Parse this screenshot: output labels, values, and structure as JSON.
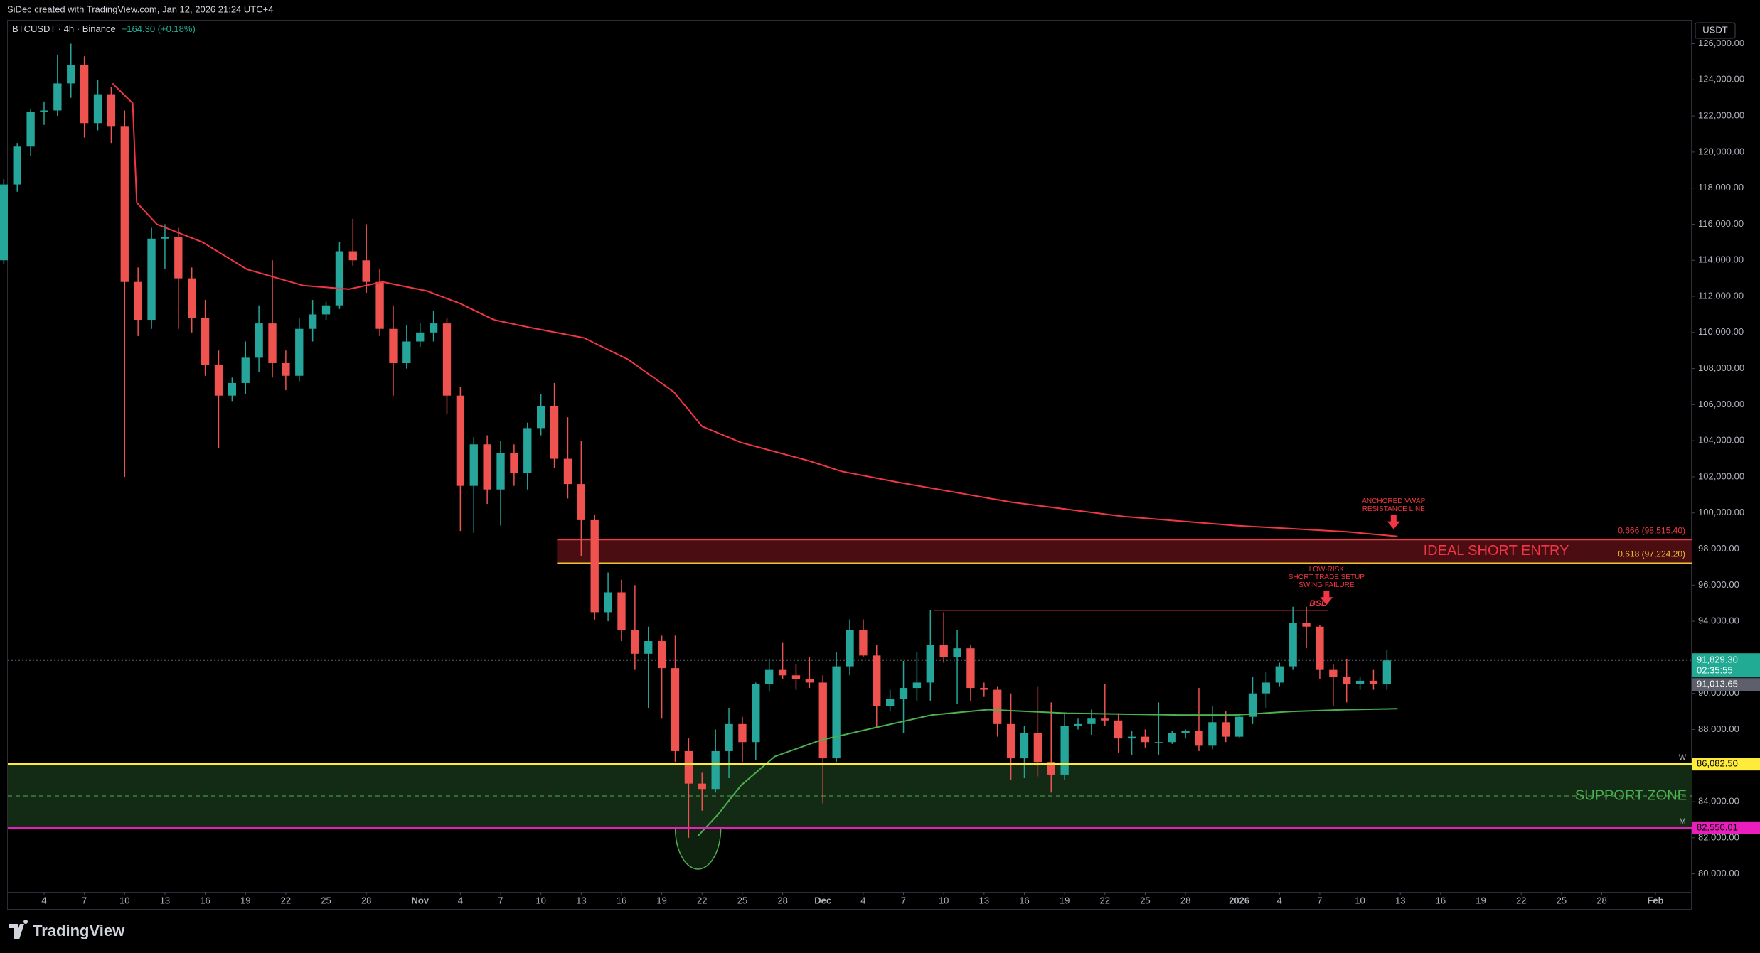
{
  "header": {
    "credit": "SiDec created with TradingView.com, Jan 12, 2026 21:24 UTC+4",
    "currency": "USDT",
    "logo": "TradingView"
  },
  "chart_data": {
    "type": "candlestick",
    "title": "BTCUSDT · 4h · Binance",
    "change": "+164.30 (+0.18%)",
    "up_color": "#26a69a",
    "down_color": "#ef5350",
    "x": [
      0,
      1,
      2,
      3,
      4,
      5,
      6,
      7,
      8,
      9,
      10,
      11,
      12,
      13,
      14,
      15,
      16,
      17,
      18,
      19,
      20,
      21,
      22,
      23,
      24,
      25,
      26,
      27,
      28,
      29,
      30,
      31,
      32,
      33,
      34,
      35,
      36,
      37,
      38,
      39,
      40,
      41,
      42,
      43,
      44,
      45,
      46,
      47,
      48,
      49,
      50,
      51,
      52,
      53,
      54,
      55,
      56,
      57,
      58,
      59,
      60,
      61,
      62,
      63,
      64,
      65,
      66,
      67,
      68,
      69,
      70,
      71,
      72,
      73,
      74,
      75,
      76,
      77,
      78,
      79,
      80,
      81,
      82,
      83,
      84,
      85,
      86,
      87,
      88,
      89,
      90,
      91,
      92,
      93,
      94,
      95,
      96,
      97,
      98,
      99,
      100,
      101,
      102,
      103
    ],
    "open": [
      114000,
      118200,
      120300,
      122200,
      122300,
      123800,
      124800,
      121600,
      123200,
      121400,
      112800,
      110700,
      115200,
      115300,
      113000,
      110800,
      108200,
      106500,
      107200,
      108600,
      110500,
      108300,
      107600,
      110200,
      111000,
      111500,
      114500,
      114000,
      112800,
      110200,
      108300,
      109500,
      110000,
      110500,
      106500,
      101500,
      103800,
      101300,
      103300,
      102200,
      104700,
      105900,
      103000,
      101600,
      99600,
      94500,
      95600,
      93500,
      92200,
      92900,
      91400,
      86800,
      85000,
      84700,
      86800,
      88300,
      87300,
      90500,
      91300,
      91000,
      90800,
      90600,
      86400,
      91500,
      93500,
      92100,
      89300,
      89700,
      90300,
      90600,
      92700,
      92000,
      92500,
      90300,
      90200,
      88300,
      86400,
      87800,
      86200,
      85500,
      88200,
      88300,
      88600,
      88500,
      87500,
      87600,
      87300,
      87300,
      87800,
      87900,
      87100,
      88400,
      87600,
      88700,
      90000,
      90600,
      91500,
      93900,
      93700,
      91300,
      90900,
      90500,
      90700,
      90500
    ],
    "high": [
      118500,
      120500,
      122400,
      122800,
      125400,
      126000,
      125300,
      124000,
      123600,
      122300,
      113600,
      115800,
      116000,
      115800,
      113600,
      111800,
      109000,
      107500,
      109500,
      111500,
      114000,
      109000,
      110800,
      111800,
      111700,
      115000,
      116300,
      116000,
      113500,
      111500,
      110400,
      110500,
      111200,
      110800,
      107000,
      104200,
      104300,
      104000,
      103800,
      105000,
      106600,
      107200,
      105300,
      104000,
      99900,
      96700,
      96300,
      96000,
      93700,
      93200,
      93200,
      87500,
      85600,
      88000,
      89200,
      88700,
      90600,
      91900,
      92800,
      91600,
      92000,
      91000,
      92300,
      94100,
      94100,
      92700,
      90200,
      91800,
      92300,
      94600,
      94500,
      93500,
      92700,
      90600,
      90400,
      90000,
      88200,
      90400,
      89500,
      88900,
      88600,
      89100,
      90500,
      88900,
      87900,
      88000,
      89500,
      87900,
      88000,
      90300,
      89300,
      89000,
      88900,
      90900,
      91200,
      91700,
      94800,
      94800,
      93800,
      91600,
      91900,
      90900,
      91300,
      92400
    ],
    "low": [
      113800,
      117800,
      119800,
      121500,
      122000,
      123000,
      120800,
      121200,
      120500,
      102000,
      109800,
      110200,
      113500,
      110200,
      110000,
      107600,
      103600,
      106200,
      106600,
      107800,
      107500,
      106800,
      107300,
      109500,
      110700,
      111300,
      113700,
      112200,
      109800,
      106500,
      108000,
      109200,
      109500,
      105500,
      99000,
      98900,
      100500,
      99300,
      101500,
      101300,
      104300,
      102500,
      100800,
      97600,
      94100,
      94000,
      92900,
      91300,
      89200,
      88600,
      86200,
      82000,
      83500,
      84500,
      85300,
      86200,
      86300,
      90100,
      90800,
      90200,
      90300,
      83900,
      86200,
      91000,
      92000,
      88100,
      89000,
      87800,
      89600,
      89600,
      91700,
      89400,
      89600,
      89800,
      87600,
      85200,
      85300,
      85400,
      84500,
      85200,
      88000,
      87700,
      88200,
      86700,
      86600,
      87000,
      86600,
      87200,
      87500,
      86800,
      86900,
      87300,
      87500,
      88300,
      89200,
      90400,
      91300,
      92500,
      90800,
      89300,
      89500,
      90200,
      90200,
      90200
    ],
    "close": [
      118200,
      120300,
      122200,
      122300,
      123800,
      124800,
      121600,
      123200,
      121400,
      112800,
      110700,
      115200,
      115300,
      113000,
      110800,
      108200,
      106500,
      107200,
      108600,
      110500,
      108300,
      107600,
      110200,
      111000,
      111500,
      114500,
      114000,
      112800,
      110200,
      108300,
      109500,
      110000,
      110500,
      106500,
      101500,
      103800,
      101300,
      103300,
      102200,
      104700,
      105900,
      103000,
      101600,
      99600,
      94500,
      95600,
      93500,
      92200,
      92900,
      91400,
      86800,
      85000,
      84700,
      86800,
      88300,
      87300,
      90500,
      91300,
      91000,
      90800,
      90600,
      86400,
      91500,
      93500,
      92100,
      89300,
      89700,
      90300,
      90600,
      92700,
      92000,
      92500,
      90300,
      90200,
      88300,
      86400,
      87800,
      86200,
      85500,
      88200,
      88300,
      88600,
      88500,
      87500,
      87600,
      87300,
      87300,
      87800,
      87900,
      87100,
      88400,
      87600,
      88700,
      90000,
      90600,
      91500,
      93900,
      93700,
      91300,
      90900,
      90500,
      90700,
      90500,
      91829.3
    ],
    "vwap_lines": [
      {
        "color": "#f23645",
        "x": [
          8.1,
          9.6,
          9.9,
          11.4,
          14.8,
          18.1,
          22.3,
          25.7,
          28.2,
          31.5,
          34,
          36.5,
          39,
          43.2,
          46.5,
          49.9,
          52,
          54.9,
          59.9,
          62.4,
          66.6,
          75,
          83.4,
          91.7,
          100.1,
          103.8
        ],
        "values": [
          123800,
          122700,
          117200,
          116000,
          115000,
          113500,
          112600,
          112400,
          112800,
          112300,
          111600,
          110700,
          110300,
          109700,
          108500,
          106700,
          104800,
          103900,
          102900,
          102300,
          101700,
          100600,
          99800,
          99300,
          98950,
          98700
        ]
      },
      {
        "color": "#4caf50",
        "x": [
          51.7,
          53.2,
          54.9,
          57.4,
          60.8,
          64.9,
          69.1,
          73.3,
          79.2,
          87.5,
          91.7,
          95.9,
          100.1,
          103.8
        ],
        "values": [
          82100,
          83300,
          84900,
          86500,
          87400,
          88100,
          88800,
          89100,
          88900,
          88800,
          88800,
          89000,
          89100,
          89150
        ]
      }
    ],
    "short_zone": {
      "x_start": 41.2,
      "label": "IDEAL SHORT ENTRY",
      "levels": [
        {
          "value": 98515.4,
          "label": "0.666 (98,515.40)",
          "color": "#f23645"
        },
        {
          "value": 97224.2,
          "label": "0.618 (97,224.20)",
          "color": "#f0c330"
        }
      ]
    },
    "support_zone": {
      "label": "SUPPORT ZONE",
      "mid": 84316,
      "levels": [
        {
          "value": 86082.5,
          "label": "86,082.50",
          "tag": "W",
          "color": "#ffeb3b"
        },
        {
          "value": 82550.01,
          "label": "82,550.01",
          "tag": "M",
          "color": "#e91ebc"
        }
      ]
    },
    "swing_high": {
      "x": [
        69.3,
        98.6
      ],
      "value": 94600,
      "label": "BSL"
    },
    "annotations": [
      {
        "x": 103.5,
        "value": 99100,
        "lines": [
          "ANCHORED VWAP",
          "RESISTANCE LINE"
        ]
      },
      {
        "x": 98.5,
        "value": 94900,
        "lines": [
          "LOW-RISK",
          "SHORT TRADE SETUP",
          "SWING FAILURE"
        ]
      }
    ],
    "last_price": {
      "value": 91829.3,
      "label": "91,829.30",
      "countdown": "02:35:55",
      "color": "#22ab94"
    },
    "prev_price": {
      "value": 91013.65,
      "label": "91,013.65"
    },
    "xlim": [
      0.3,
      125.7
    ],
    "xticks": [
      {
        "value": 3,
        "label": "4"
      },
      {
        "value": 6,
        "label": "7"
      },
      {
        "value": 9,
        "label": "10"
      },
      {
        "value": 12,
        "label": "13"
      },
      {
        "value": 15,
        "label": "16"
      },
      {
        "value": 18,
        "label": "19"
      },
      {
        "value": 21,
        "label": "22"
      },
      {
        "value": 24,
        "label": "25"
      },
      {
        "value": 27,
        "label": "28"
      },
      {
        "value": 31,
        "label": "Nov"
      },
      {
        "value": 34,
        "label": "4"
      },
      {
        "value": 37,
        "label": "7"
      },
      {
        "value": 40,
        "label": "10"
      },
      {
        "value": 43,
        "label": "13"
      },
      {
        "value": 46,
        "label": "16"
      },
      {
        "value": 49,
        "label": "19"
      },
      {
        "value": 52,
        "label": "22"
      },
      {
        "value": 55,
        "label": "25"
      },
      {
        "value": 58,
        "label": "28"
      },
      {
        "value": 61,
        "label": "Dec"
      },
      {
        "value": 64,
        "label": "4"
      },
      {
        "value": 67,
        "label": "7"
      },
      {
        "value": 70,
        "label": "10"
      },
      {
        "value": 73,
        "label": "13"
      },
      {
        "value": 76,
        "label": "16"
      },
      {
        "value": 79,
        "label": "19"
      },
      {
        "value": 82,
        "label": "22"
      },
      {
        "value": 85,
        "label": "25"
      },
      {
        "value": 88,
        "label": "28"
      },
      {
        "value": 92,
        "label": "2026"
      },
      {
        "value": 95,
        "label": "4"
      },
      {
        "value": 98,
        "label": "7"
      },
      {
        "value": 101,
        "label": "10"
      },
      {
        "value": 104,
        "label": "13"
      },
      {
        "value": 107,
        "label": "16"
      },
      {
        "value": 110,
        "label": "19"
      },
      {
        "value": 113,
        "label": "22"
      },
      {
        "value": 116,
        "label": "25"
      },
      {
        "value": 119,
        "label": "28"
      },
      {
        "value": 123,
        "label": "Feb"
      }
    ],
    "ylim": [
      79000,
      127320
    ],
    "yticks": [
      {
        "value": 80000,
        "label": "80,000.00"
      },
      {
        "value": 82000,
        "label": "82,000.00"
      },
      {
        "value": 84000,
        "label": "84,000.00"
      },
      {
        "value": 86000,
        "label": "86,000.00"
      },
      {
        "value": 88000,
        "label": "88,000.00"
      },
      {
        "value": 90000,
        "label": "90,000.00"
      },
      {
        "value": 92000,
        "label": "92,000.00"
      },
      {
        "value": 94000,
        "label": "94,000.00"
      },
      {
        "value": 96000,
        "label": "96,000.00"
      },
      {
        "value": 98000,
        "label": "98,000.00"
      },
      {
        "value": 100000,
        "label": "100,000.00"
      },
      {
        "value": 102000,
        "label": "102,000.00"
      },
      {
        "value": 104000,
        "label": "104,000.00"
      },
      {
        "value": 106000,
        "label": "106,000.00"
      },
      {
        "value": 108000,
        "label": "108,000.00"
      },
      {
        "value": 110000,
        "label": "110,000.00"
      },
      {
        "value": 112000,
        "label": "112,000.00"
      },
      {
        "value": 114000,
        "label": "114,000.00"
      },
      {
        "value": 116000,
        "label": "116,000.00"
      },
      {
        "value": 118000,
        "label": "118,000.00"
      },
      {
        "value": 120000,
        "label": "120,000.00"
      },
      {
        "value": 122000,
        "label": "122,000.00"
      },
      {
        "value": 124000,
        "label": "124,000.00"
      },
      {
        "value": 126000,
        "label": "126,000.00"
      }
    ]
  }
}
